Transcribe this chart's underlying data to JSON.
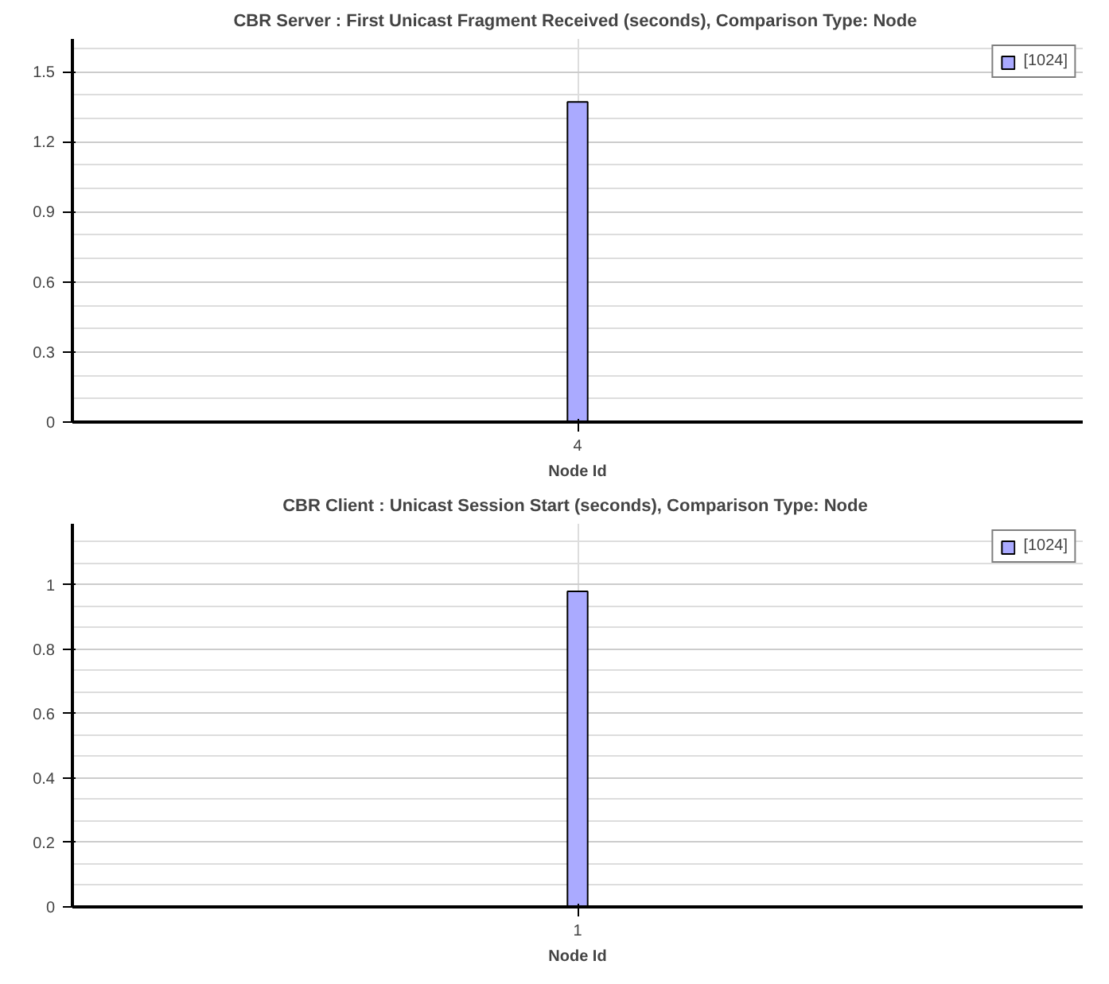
{
  "chart_data": [
    {
      "type": "bar",
      "title": "CBR Server :  First Unicast Fragment Received (seconds), Comparison Type: Node",
      "xlabel": "Node Id",
      "categories": [
        "4"
      ],
      "series": [
        {
          "name": "[1024]",
          "color": "#aaaaff",
          "values": [
            1.37
          ]
        }
      ],
      "ylim": [
        0,
        1.64
      ],
      "yticks": [
        0,
        0.3,
        0.6,
        0.9,
        1.2,
        1.5
      ],
      "grid": true,
      "legend": "top right"
    },
    {
      "type": "bar",
      "title": "CBR Client :  Unicast Session Start (seconds), Comparison Type: Node",
      "xlabel": "Node Id",
      "categories": [
        "1"
      ],
      "series": [
        {
          "name": "[1024]",
          "color": "#aaaaff",
          "values": [
            0.98
          ]
        }
      ],
      "ylim": [
        0,
        1.19
      ],
      "yticks": [
        0,
        0.2,
        0.4,
        0.6,
        0.8,
        1
      ],
      "grid": true,
      "legend": "top right"
    }
  ]
}
